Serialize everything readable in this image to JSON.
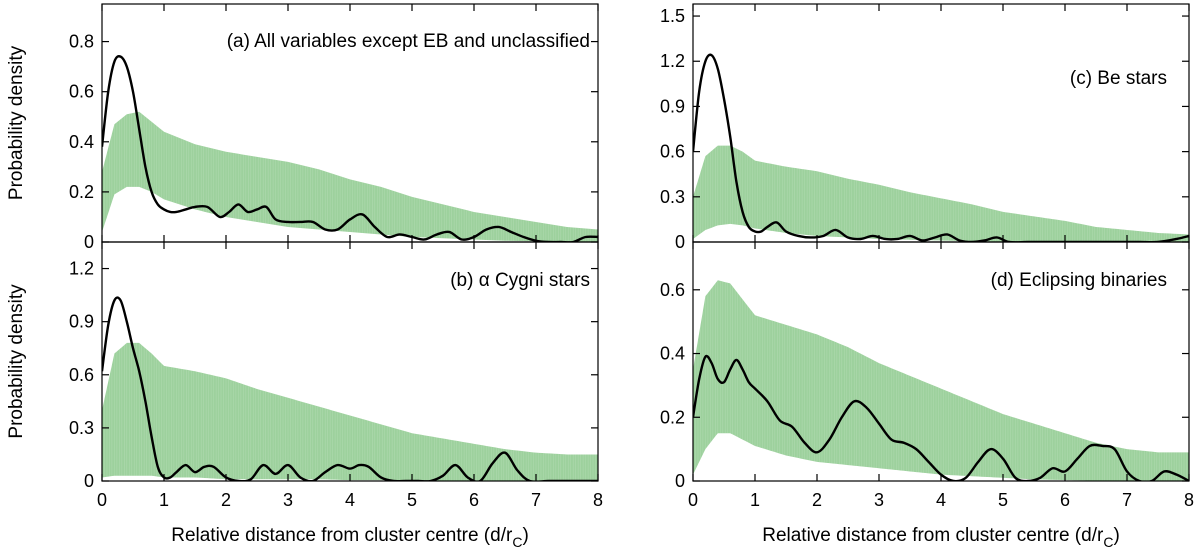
{
  "chart_data": [
    {
      "id": "a",
      "type": "area",
      "label": "(a)  All variables except EB and unclassified",
      "ylabel": "Probability density",
      "xlabel": "",
      "xlim": [
        0,
        8
      ],
      "ylim": [
        0,
        0.95
      ],
      "xticks": [
        0,
        1,
        2,
        3,
        4,
        5,
        6,
        7,
        8
      ],
      "yticks": [
        0,
        0.2,
        0.4,
        0.6,
        0.8
      ],
      "ytick_labels": [
        "0",
        "0.2",
        "0.4",
        "0.6",
        "0.8"
      ],
      "band_x": [
        0,
        0.2,
        0.4,
        0.6,
        0.8,
        1.0,
        1.5,
        2,
        2.5,
        3,
        3.5,
        4,
        4.5,
        5,
        5.5,
        6,
        6.5,
        7,
        7.5,
        8
      ],
      "band_upper": [
        0.28,
        0.47,
        0.51,
        0.52,
        0.48,
        0.44,
        0.39,
        0.36,
        0.34,
        0.32,
        0.29,
        0.25,
        0.22,
        0.18,
        0.15,
        0.12,
        0.1,
        0.08,
        0.06,
        0.05
      ],
      "band_lower": [
        0.04,
        0.19,
        0.22,
        0.22,
        0.2,
        0.17,
        0.13,
        0.1,
        0.08,
        0.06,
        0.05,
        0.04,
        0.03,
        0.02,
        0.015,
        0.01,
        0.005,
        0.003,
        0.002,
        0.0
      ],
      "curve_x": [
        0,
        0.1,
        0.2,
        0.3,
        0.4,
        0.5,
        0.6,
        0.7,
        0.8,
        0.9,
        1.0,
        1.1,
        1.2,
        1.35,
        1.5,
        1.7,
        1.9,
        2.05,
        2.2,
        2.35,
        2.5,
        2.65,
        2.8,
        3.0,
        3.2,
        3.4,
        3.6,
        3.8,
        4.0,
        4.2,
        4.4,
        4.6,
        4.8,
        5.0,
        5.2,
        5.4,
        5.6,
        5.8,
        6.0,
        6.2,
        6.4,
        6.6,
        6.8,
        7.0,
        7.2,
        7.4,
        7.6,
        7.8,
        8.0
      ],
      "curve_y": [
        0.38,
        0.6,
        0.72,
        0.74,
        0.7,
        0.6,
        0.45,
        0.3,
        0.2,
        0.15,
        0.13,
        0.12,
        0.12,
        0.13,
        0.14,
        0.14,
        0.1,
        0.12,
        0.15,
        0.12,
        0.13,
        0.14,
        0.09,
        0.08,
        0.08,
        0.08,
        0.05,
        0.05,
        0.09,
        0.11,
        0.06,
        0.02,
        0.03,
        0.02,
        0.01,
        0.03,
        0.04,
        0.01,
        0.02,
        0.05,
        0.06,
        0.04,
        0.02,
        0.005,
        0.0,
        0.0,
        0.0,
        0.02,
        0.02
      ]
    },
    {
      "id": "b",
      "type": "area",
      "label": "(b)  α Cygni stars",
      "ylabel": "Probability density",
      "xlabel": "Relative distance from cluster centre (d/r",
      "xlabel_sub": "C",
      "xlabel_end": ")",
      "xlim": [
        0,
        8
      ],
      "ylim": [
        0,
        1.35
      ],
      "xticks": [
        0,
        1,
        2,
        3,
        4,
        5,
        6,
        7,
        8
      ],
      "yticks": [
        0,
        0.3,
        0.6,
        0.9,
        1.2
      ],
      "ytick_labels": [
        "0",
        "0.3",
        "0.6",
        "0.9",
        "1.2"
      ],
      "band_x": [
        0,
        0.2,
        0.4,
        0.6,
        0.8,
        1.0,
        1.5,
        2,
        2.5,
        3,
        3.5,
        4,
        4.5,
        5,
        5.5,
        6,
        6.5,
        7,
        7.5,
        8
      ],
      "band_upper": [
        0.4,
        0.72,
        0.78,
        0.78,
        0.72,
        0.65,
        0.62,
        0.58,
        0.52,
        0.47,
        0.42,
        0.37,
        0.32,
        0.27,
        0.24,
        0.21,
        0.18,
        0.16,
        0.15,
        0.15
      ],
      "band_lower": [
        0.02,
        0.03,
        0.03,
        0.03,
        0.03,
        0.02,
        0.02,
        0.01,
        0.01,
        0.01,
        0.01,
        0.005,
        0.005,
        0.003,
        0.002,
        0.001,
        0.001,
        0.0,
        0.0,
        0.0
      ],
      "curve_x": [
        0,
        0.1,
        0.2,
        0.3,
        0.4,
        0.5,
        0.6,
        0.7,
        0.8,
        0.9,
        1.0,
        1.1,
        1.2,
        1.35,
        1.5,
        1.65,
        1.8,
        2.0,
        2.2,
        2.4,
        2.6,
        2.8,
        3.0,
        3.2,
        3.4,
        3.6,
        3.8,
        4.0,
        4.15,
        4.3,
        4.5,
        4.7,
        4.9,
        5.1,
        5.3,
        5.5,
        5.7,
        5.9,
        6.1,
        6.3,
        6.5,
        6.7,
        6.9,
        7.2,
        7.5,
        7.8,
        8.0
      ],
      "curve_y": [
        0.62,
        0.88,
        1.02,
        1.02,
        0.9,
        0.75,
        0.62,
        0.45,
        0.25,
        0.08,
        0.02,
        0.02,
        0.05,
        0.09,
        0.05,
        0.08,
        0.08,
        0.02,
        0.0,
        0.01,
        0.09,
        0.04,
        0.09,
        0.02,
        0.0,
        0.05,
        0.09,
        0.07,
        0.09,
        0.08,
        0.02,
        0.0,
        0.0,
        0.0,
        0.0,
        0.03,
        0.09,
        0.02,
        0.0,
        0.1,
        0.16,
        0.06,
        0.0,
        0.0,
        0.0,
        0.0,
        0.0
      ]
    },
    {
      "id": "c",
      "type": "area",
      "label": "(c)  Be stars",
      "ylabel": "",
      "xlabel": "",
      "xlim": [
        0,
        8
      ],
      "ylim": [
        0,
        1.58
      ],
      "xticks": [
        0,
        1,
        2,
        3,
        4,
        5,
        6,
        7,
        8
      ],
      "yticks": [
        0,
        0.3,
        0.6,
        0.9,
        1.2,
        1.5
      ],
      "ytick_labels": [
        "0",
        "0.3",
        "0.6",
        "0.9",
        "1.2",
        "1.5"
      ],
      "band_x": [
        0,
        0.2,
        0.4,
        0.6,
        0.8,
        1.0,
        1.5,
        2,
        2.5,
        3,
        3.5,
        4,
        4.5,
        5,
        5.5,
        6,
        6.5,
        7,
        7.5,
        8
      ],
      "band_upper": [
        0.3,
        0.57,
        0.64,
        0.64,
        0.6,
        0.54,
        0.5,
        0.47,
        0.42,
        0.38,
        0.33,
        0.29,
        0.25,
        0.2,
        0.17,
        0.14,
        0.1,
        0.08,
        0.06,
        0.05
      ],
      "band_lower": [
        0.02,
        0.08,
        0.11,
        0.12,
        0.11,
        0.09,
        0.06,
        0.04,
        0.03,
        0.02,
        0.015,
        0.01,
        0.005,
        0.003,
        0.002,
        0.001,
        0.0,
        0.0,
        0.0,
        0.0
      ],
      "curve_x": [
        0,
        0.1,
        0.2,
        0.3,
        0.4,
        0.5,
        0.6,
        0.7,
        0.8,
        0.9,
        1.0,
        1.1,
        1.2,
        1.35,
        1.5,
        1.7,
        1.9,
        2.1,
        2.3,
        2.5,
        2.7,
        2.9,
        3.1,
        3.3,
        3.5,
        3.7,
        3.9,
        4.1,
        4.3,
        4.5,
        4.7,
        4.9,
        5.1,
        5.4,
        5.7,
        6.0,
        6.3,
        6.6,
        6.9,
        7.2,
        7.5,
        7.8,
        8.0
      ],
      "curve_y": [
        0.6,
        1.0,
        1.2,
        1.24,
        1.15,
        0.95,
        0.7,
        0.4,
        0.2,
        0.1,
        0.07,
        0.07,
        0.1,
        0.13,
        0.07,
        0.04,
        0.03,
        0.04,
        0.08,
        0.03,
        0.02,
        0.04,
        0.02,
        0.02,
        0.04,
        0.01,
        0.03,
        0.05,
        0.01,
        0.0,
        0.01,
        0.03,
        0.0,
        0.0,
        0.0,
        0.0,
        0.0,
        0.0,
        0.0,
        0.0,
        0.0,
        0.02,
        0.04
      ]
    },
    {
      "id": "d",
      "type": "area",
      "label": "(d)  Eclipsing binaries",
      "ylabel": "",
      "xlabel": "Relative distance from cluster centre (d/r",
      "xlabel_sub": "C",
      "xlabel_end": ")",
      "xlim": [
        0,
        8
      ],
      "ylim": [
        0,
        0.75
      ],
      "xticks": [
        0,
        1,
        2,
        3,
        4,
        5,
        6,
        7,
        8
      ],
      "yticks": [
        0,
        0.2,
        0.4,
        0.6
      ],
      "ytick_labels": [
        "0",
        "0.2",
        "0.4",
        "0.6"
      ],
      "band_x": [
        0,
        0.2,
        0.4,
        0.6,
        0.8,
        1.0,
        1.5,
        2,
        2.5,
        3,
        3.5,
        4,
        4.5,
        5,
        5.5,
        6,
        6.5,
        7,
        7.5,
        8
      ],
      "band_upper": [
        0.35,
        0.58,
        0.63,
        0.62,
        0.57,
        0.52,
        0.49,
        0.46,
        0.42,
        0.37,
        0.33,
        0.29,
        0.25,
        0.21,
        0.18,
        0.15,
        0.12,
        0.1,
        0.09,
        0.09
      ],
      "band_lower": [
        0.02,
        0.1,
        0.15,
        0.15,
        0.13,
        0.11,
        0.08,
        0.06,
        0.05,
        0.04,
        0.03,
        0.02,
        0.015,
        0.01,
        0.005,
        0.003,
        0.001,
        0.0,
        0.0,
        0.0
      ],
      "curve_x": [
        0,
        0.1,
        0.2,
        0.3,
        0.4,
        0.5,
        0.6,
        0.7,
        0.8,
        0.9,
        1.0,
        1.2,
        1.4,
        1.6,
        1.8,
        2.0,
        2.2,
        2.4,
        2.6,
        2.8,
        3.0,
        3.2,
        3.4,
        3.6,
        3.8,
        4.0,
        4.2,
        4.4,
        4.6,
        4.8,
        5.0,
        5.2,
        5.4,
        5.6,
        5.8,
        6.0,
        6.2,
        6.4,
        6.6,
        6.8,
        7.0,
        7.2,
        7.4,
        7.6,
        7.8,
        8.0
      ],
      "curve_y": [
        0.2,
        0.32,
        0.39,
        0.37,
        0.32,
        0.31,
        0.35,
        0.38,
        0.35,
        0.31,
        0.29,
        0.25,
        0.19,
        0.17,
        0.12,
        0.09,
        0.13,
        0.2,
        0.25,
        0.23,
        0.18,
        0.13,
        0.12,
        0.1,
        0.06,
        0.02,
        0.0,
        0.01,
        0.06,
        0.1,
        0.07,
        0.01,
        0.0,
        0.01,
        0.04,
        0.03,
        0.07,
        0.11,
        0.11,
        0.1,
        0.03,
        0.0,
        0.0,
        0.03,
        0.02,
        0.0
      ]
    }
  ]
}
